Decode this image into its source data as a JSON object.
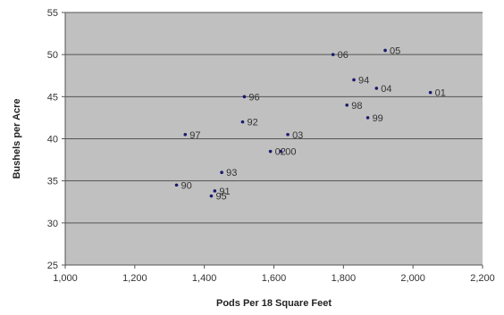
{
  "chart_data": {
    "type": "scatter",
    "title": "",
    "xlabel": "Pods Per 18 Square Feet",
    "ylabel": "Bushels per Acre",
    "xlim": [
      1000,
      2200
    ],
    "ylim": [
      25,
      55
    ],
    "x_ticks": [
      1000,
      1200,
      1400,
      1600,
      1800,
      2000,
      2200
    ],
    "x_tick_labels": [
      "1,000",
      "1,200",
      "1,400",
      "1,600",
      "1,800",
      "2,000",
      "2,200"
    ],
    "y_ticks": [
      25,
      30,
      35,
      40,
      45,
      50,
      55
    ],
    "y_tick_labels": [
      "25",
      "30",
      "35",
      "40",
      "45",
      "50",
      "55"
    ],
    "grid": "horizontal",
    "legend": "none",
    "colors": {
      "plot_background": "#c0c0c0",
      "grid": "#555555",
      "marker": "#1a1a6e"
    },
    "points": [
      {
        "label": "90",
        "x": 1320,
        "y": 34.5
      },
      {
        "label": "91",
        "x": 1430,
        "y": 33.8
      },
      {
        "label": "92",
        "x": 1510,
        "y": 42.0
      },
      {
        "label": "93",
        "x": 1450,
        "y": 36.0
      },
      {
        "label": "94",
        "x": 1830,
        "y": 47.0
      },
      {
        "label": "95",
        "x": 1420,
        "y": 33.2
      },
      {
        "label": "96",
        "x": 1515,
        "y": 45.0
      },
      {
        "label": "97",
        "x": 1345,
        "y": 40.5
      },
      {
        "label": "98",
        "x": 1810,
        "y": 44.0
      },
      {
        "label": "99",
        "x": 1870,
        "y": 42.5
      },
      {
        "label": "00",
        "x": 1620,
        "y": 38.5
      },
      {
        "label": "01",
        "x": 2050,
        "y": 45.5
      },
      {
        "label": "02",
        "x": 1590,
        "y": 38.5
      },
      {
        "label": "03",
        "x": 1640,
        "y": 40.5
      },
      {
        "label": "04",
        "x": 1895,
        "y": 46.0
      },
      {
        "label": "05",
        "x": 1920,
        "y": 50.5
      },
      {
        "label": "06",
        "x": 1770,
        "y": 50.0
      }
    ]
  }
}
